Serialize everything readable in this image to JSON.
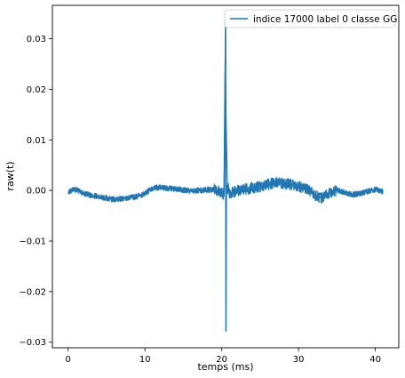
{
  "chart_data": {
    "type": "line",
    "title": "",
    "xlabel": "temps (ms)",
    "ylabel": "raw(t)",
    "xlim": [
      -2.05,
      43.05
    ],
    "ylim": [
      -0.0311,
      0.0366
    ],
    "x_ticks": [
      0,
      10,
      20,
      30,
      40
    ],
    "x_tick_labels": [
      "0",
      "10",
      "20",
      "30",
      "40"
    ],
    "y_ticks": [
      -0.03,
      -0.02,
      -0.01,
      0.0,
      0.01,
      0.02,
      0.03
    ],
    "y_tick_labels": [
      "−0.03",
      "−0.02",
      "−0.01",
      "0.00",
      "0.01",
      "0.02",
      "0.03"
    ],
    "grid": false,
    "legend_position": "top-right",
    "colors": {
      "series": "#1f77b4",
      "axes": "#000000",
      "background": "#ffffff"
    },
    "series": [
      {
        "name": "indice 17000 label 0 classe GG",
        "x": [
          0,
          1,
          2,
          3,
          4,
          5,
          6,
          7,
          8,
          9,
          10,
          11,
          12,
          13,
          14,
          15,
          16,
          17,
          18,
          19,
          20,
          20.3,
          20.5,
          20.55,
          20.6,
          20.65,
          20.7,
          20.9,
          21,
          22,
          23,
          24,
          25,
          26,
          27,
          28,
          29,
          30,
          31,
          32,
          33,
          34,
          35,
          36,
          37,
          38,
          39,
          40,
          41
        ],
        "y": [
          -0.0002,
          0.0002,
          -0.0006,
          -0.001,
          -0.0012,
          -0.0015,
          -0.0018,
          -0.0016,
          -0.0014,
          -0.0012,
          -0.0006,
          0.0005,
          0.0006,
          0.0004,
          0.0003,
          0.0001,
          -0.0001,
          0.0,
          0.0001,
          0.0002,
          -0.0004,
          -0.0008,
          0.0335,
          -0.0278,
          0.0,
          0.001,
          -0.0005,
          0.0006,
          -0.0006,
          0.0,
          0.0002,
          0.0005,
          0.0008,
          0.0012,
          0.0016,
          0.0014,
          0.0012,
          0.0008,
          0.0004,
          -0.0008,
          -0.0015,
          -0.0006,
          0.0,
          -0.0004,
          -0.0008,
          -0.0006,
          -0.0002,
          0.0002,
          -0.0002
        ]
      }
    ]
  }
}
